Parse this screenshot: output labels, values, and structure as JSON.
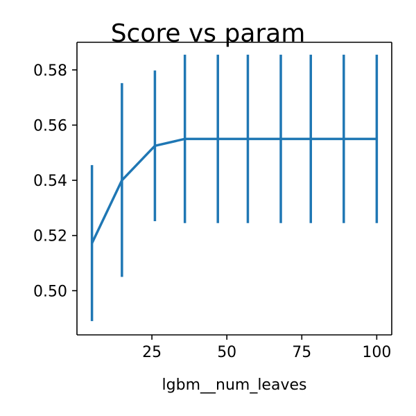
{
  "chart_data": {
    "type": "line",
    "title": "Score vs param",
    "xlabel": "lgbm__num_leaves",
    "ylabel": "",
    "xlim": [
      0,
      105
    ],
    "ylim": [
      0.484,
      0.59
    ],
    "x_ticks": [
      25,
      50,
      75,
      100
    ],
    "x_tick_labels": [
      "25",
      "50",
      "75",
      "100"
    ],
    "y_ticks": [
      0.5,
      0.52,
      0.54,
      0.56,
      0.58
    ],
    "y_tick_labels": [
      "0.50",
      "0.52",
      "0.54",
      "0.56",
      "0.58"
    ],
    "grid": false,
    "series": [
      {
        "color": "#1f77b4",
        "x": [
          5,
          15,
          26,
          36,
          47,
          57,
          68,
          78,
          89,
          100
        ],
        "y": [
          0.5172,
          0.54,
          0.5525,
          0.555,
          0.555,
          0.555,
          0.555,
          0.555,
          0.555,
          0.555
        ],
        "err_low": [
          0.489,
          0.505,
          0.5252,
          0.5245,
          0.5245,
          0.5245,
          0.5245,
          0.5245,
          0.5245,
          0.5245
        ],
        "err_high": [
          0.5455,
          0.5752,
          0.5798,
          0.5855,
          0.5855,
          0.5855,
          0.5855,
          0.5855,
          0.5855,
          0.5855
        ]
      }
    ]
  }
}
